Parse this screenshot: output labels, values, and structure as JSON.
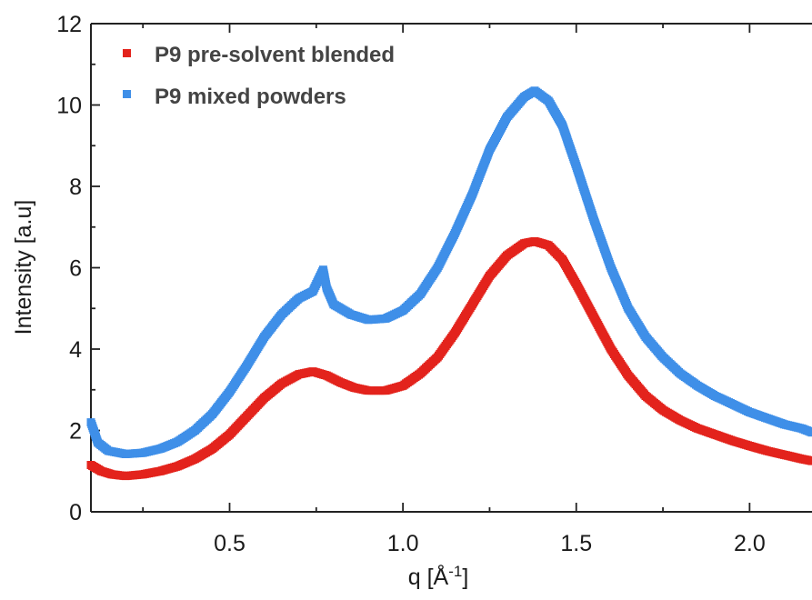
{
  "chart_data": {
    "type": "scatter",
    "title": "",
    "xlabel": "q [Å",
    "xlabel_sup": "-1",
    "xlabel_close": "]",
    "ylabel": "Intensity [a.u]",
    "xlim": [
      0.1,
      2.18
    ],
    "ylim": [
      0,
      12
    ],
    "x_ticks": [
      0.5,
      1.0,
      1.5,
      2.0
    ],
    "x_tick_labels": [
      "0.5",
      "1.0",
      "1.5",
      "2.0"
    ],
    "y_ticks": [
      0,
      2,
      4,
      6,
      8,
      10,
      12
    ],
    "y_tick_labels": [
      "0",
      "2",
      "4",
      "6",
      "8",
      "10",
      "12"
    ],
    "grid": false,
    "legend_position": "top-left",
    "series": [
      {
        "name": "P9 pre-solvent blended",
        "color": "#e3231c",
        "points": [
          [
            0.1,
            1.15
          ],
          [
            0.13,
            1.0
          ],
          [
            0.16,
            0.92
          ],
          [
            0.2,
            0.88
          ],
          [
            0.25,
            0.92
          ],
          [
            0.3,
            1.0
          ],
          [
            0.35,
            1.12
          ],
          [
            0.4,
            1.3
          ],
          [
            0.45,
            1.55
          ],
          [
            0.5,
            1.9
          ],
          [
            0.55,
            2.35
          ],
          [
            0.6,
            2.8
          ],
          [
            0.65,
            3.15
          ],
          [
            0.7,
            3.38
          ],
          [
            0.74,
            3.45
          ],
          [
            0.78,
            3.35
          ],
          [
            0.82,
            3.18
          ],
          [
            0.86,
            3.05
          ],
          [
            0.9,
            2.98
          ],
          [
            0.95,
            2.98
          ],
          [
            1.0,
            3.1
          ],
          [
            1.05,
            3.4
          ],
          [
            1.1,
            3.8
          ],
          [
            1.15,
            4.4
          ],
          [
            1.2,
            5.1
          ],
          [
            1.25,
            5.8
          ],
          [
            1.3,
            6.3
          ],
          [
            1.35,
            6.6
          ],
          [
            1.38,
            6.65
          ],
          [
            1.42,
            6.55
          ],
          [
            1.46,
            6.2
          ],
          [
            1.5,
            5.6
          ],
          [
            1.55,
            4.8
          ],
          [
            1.6,
            4.0
          ],
          [
            1.65,
            3.35
          ],
          [
            1.7,
            2.85
          ],
          [
            1.75,
            2.5
          ],
          [
            1.8,
            2.25
          ],
          [
            1.85,
            2.05
          ],
          [
            1.9,
            1.9
          ],
          [
            1.95,
            1.75
          ],
          [
            2.0,
            1.62
          ],
          [
            2.05,
            1.5
          ],
          [
            2.1,
            1.4
          ],
          [
            2.15,
            1.3
          ],
          [
            2.18,
            1.25
          ]
        ]
      },
      {
        "name": "P9 mixed powders",
        "color": "#3f8fe8",
        "points": [
          [
            0.1,
            2.2
          ],
          [
            0.12,
            1.7
          ],
          [
            0.15,
            1.5
          ],
          [
            0.2,
            1.42
          ],
          [
            0.25,
            1.45
          ],
          [
            0.3,
            1.55
          ],
          [
            0.35,
            1.72
          ],
          [
            0.4,
            2.0
          ],
          [
            0.45,
            2.4
          ],
          [
            0.5,
            2.95
          ],
          [
            0.55,
            3.6
          ],
          [
            0.6,
            4.3
          ],
          [
            0.65,
            4.85
          ],
          [
            0.7,
            5.25
          ],
          [
            0.74,
            5.42
          ],
          [
            0.77,
            5.95
          ],
          [
            0.78,
            5.5
          ],
          [
            0.8,
            5.1
          ],
          [
            0.85,
            4.85
          ],
          [
            0.9,
            4.72
          ],
          [
            0.95,
            4.75
          ],
          [
            1.0,
            4.95
          ],
          [
            1.05,
            5.35
          ],
          [
            1.1,
            6.0
          ],
          [
            1.15,
            6.85
          ],
          [
            1.2,
            7.8
          ],
          [
            1.25,
            8.9
          ],
          [
            1.3,
            9.7
          ],
          [
            1.35,
            10.2
          ],
          [
            1.38,
            10.35
          ],
          [
            1.42,
            10.1
          ],
          [
            1.46,
            9.5
          ],
          [
            1.5,
            8.5
          ],
          [
            1.55,
            7.2
          ],
          [
            1.6,
            6.0
          ],
          [
            1.65,
            5.0
          ],
          [
            1.7,
            4.3
          ],
          [
            1.75,
            3.8
          ],
          [
            1.8,
            3.4
          ],
          [
            1.85,
            3.1
          ],
          [
            1.9,
            2.85
          ],
          [
            1.95,
            2.65
          ],
          [
            2.0,
            2.45
          ],
          [
            2.05,
            2.3
          ],
          [
            2.1,
            2.15
          ],
          [
            2.15,
            2.05
          ],
          [
            2.18,
            1.95
          ]
        ]
      }
    ]
  }
}
